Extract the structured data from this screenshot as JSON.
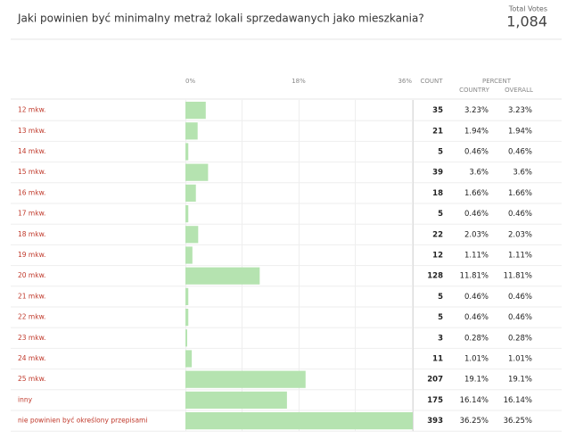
{
  "header": {
    "title": "Jaki powinien być minimalny metraż lokali sprzedawanych jako mieszkania?",
    "total_label": "Total Votes",
    "total": "1,084"
  },
  "chart_data": {
    "type": "bar",
    "categories": [
      "12 mkw.",
      "13 mkw.",
      "14 mkw.",
      "15 mkw.",
      "16 mkw.",
      "17 mkw.",
      "18 mkw.",
      "19 mkw.",
      "20 mkw.",
      "21 mkw.",
      "22 mkw.",
      "23 mkw.",
      "24 mkw.",
      "25 mkw.",
      "inny",
      "nie powinien być określony przepisami"
    ],
    "values": [
      3.23,
      1.94,
      0.46,
      3.6,
      1.66,
      0.46,
      2.03,
      1.11,
      11.81,
      0.46,
      0.46,
      0.28,
      1.01,
      19.1,
      16.14,
      36.25
    ],
    "value_labels": [
      "3.23%",
      "1.94%",
      "0.46%",
      "3.6%",
      "1.66%",
      "0.46%",
      "2.03%",
      "1.11%",
      "11.81%",
      "0.46%",
      "0.46%",
      "0.28%",
      "1.01%",
      "19.1%",
      "16.14%",
      "36.25%"
    ],
    "color": "#b5e3b0",
    "xlim": [
      0,
      36
    ],
    "xticks": [
      {
        "value": 0,
        "label": "0%"
      },
      {
        "value": 18,
        "label": "18%"
      },
      {
        "value": 36,
        "label": "36%"
      }
    ]
  },
  "table": {
    "columns": {
      "count": "COUNT",
      "percent": "PERCENT",
      "country": "COUNTRY",
      "overall": "OVERALL"
    },
    "counts": [
      35,
      21,
      5,
      39,
      18,
      5,
      22,
      12,
      128,
      5,
      5,
      3,
      11,
      207,
      175,
      393
    ],
    "overall": [
      "3.23%",
      "1.94%",
      "0.46%",
      "3.6%",
      "1.66%",
      "0.46%",
      "2.03%",
      "1.11%",
      "11.81%",
      "0.46%",
      "0.46%",
      "0.28%",
      "1.01%",
      "19.1%",
      "16.14%",
      "36.25%"
    ]
  }
}
